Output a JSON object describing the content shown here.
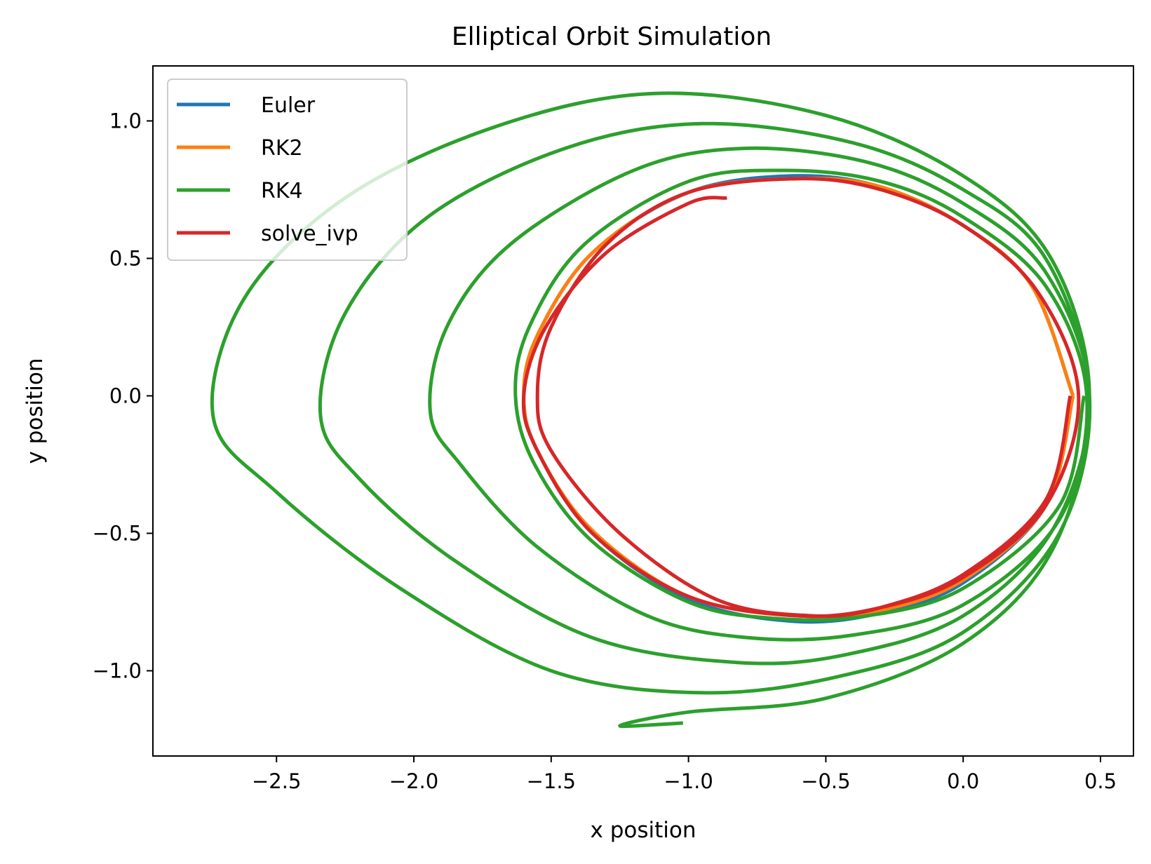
{
  "chart_data": {
    "type": "line",
    "title": "Elliptical Orbit Simulation",
    "xlabel": "x position",
    "ylabel": "y position",
    "xlim": [
      -2.95,
      0.62
    ],
    "ylim": [
      -1.31,
      1.2
    ],
    "grid": false,
    "legend_position": "top-left",
    "x_ticks": [
      -2.5,
      -2.0,
      -1.5,
      -1.0,
      -0.5,
      0.0,
      0.5
    ],
    "x_tick_labels": [
      "−2.5",
      "−2.0",
      "−1.5",
      "−1.0",
      "−0.5",
      "0.0",
      "0.5"
    ],
    "y_ticks": [
      -1.0,
      -0.5,
      0.0,
      0.5,
      1.0
    ],
    "y_tick_labels": [
      "−1.0",
      "−0.5",
      "0.0",
      "0.5",
      "1.0"
    ],
    "series": [
      {
        "name": "Euler",
        "color": "#1f77b4",
        "points": [
          [
            0.4,
            0.0
          ],
          [
            0.3,
            -0.4
          ],
          [
            0.0,
            -0.68
          ],
          [
            -0.3,
            -0.79
          ],
          [
            -0.62,
            -0.82
          ],
          [
            -1.0,
            -0.74
          ],
          [
            -1.35,
            -0.5
          ],
          [
            -1.55,
            -0.2
          ],
          [
            -1.6,
            0.0
          ],
          [
            -1.55,
            0.22
          ],
          [
            -1.35,
            0.52
          ],
          [
            -1.0,
            0.74
          ],
          [
            -0.62,
            0.8
          ],
          [
            -0.3,
            0.76
          ],
          [
            0.0,
            0.62
          ],
          [
            0.25,
            0.4
          ],
          [
            0.4,
            0.0
          ]
        ]
      },
      {
        "name": "RK2",
        "color": "#ff7f0e",
        "points": [
          [
            0.4,
            0.0
          ],
          [
            0.3,
            -0.4
          ],
          [
            0.0,
            -0.67
          ],
          [
            -0.3,
            -0.78
          ],
          [
            -0.6,
            -0.8
          ],
          [
            -1.0,
            -0.73
          ],
          [
            -1.35,
            -0.49
          ],
          [
            -1.55,
            -0.2
          ],
          [
            -1.6,
            0.0
          ],
          [
            -1.55,
            0.22
          ],
          [
            -1.35,
            0.52
          ],
          [
            -1.0,
            0.74
          ],
          [
            -0.6,
            0.79
          ],
          [
            -0.3,
            0.76
          ],
          [
            0.0,
            0.62
          ],
          [
            0.25,
            0.4
          ],
          [
            0.4,
            0.0
          ]
        ]
      },
      {
        "name": "RK4",
        "color": "#2ca02c",
        "points": [
          [
            0.44,
            0.0
          ],
          [
            0.35,
            -0.4
          ],
          [
            0.0,
            -0.7
          ],
          [
            -0.35,
            -0.8
          ],
          [
            -0.68,
            -0.81
          ],
          [
            -1.0,
            -0.75
          ],
          [
            -1.35,
            -0.53
          ],
          [
            -1.56,
            -0.25
          ],
          [
            -1.63,
            0.0
          ],
          [
            -1.58,
            0.25
          ],
          [
            -1.38,
            0.55
          ],
          [
            -1.0,
            0.78
          ],
          [
            -0.65,
            0.82
          ],
          [
            -0.3,
            0.78
          ],
          [
            0.0,
            0.65
          ],
          [
            0.3,
            0.4
          ],
          [
            0.45,
            0.0
          ],
          [
            0.35,
            -0.45
          ],
          [
            0.0,
            -0.76
          ],
          [
            -0.4,
            -0.87
          ],
          [
            -0.78,
            -0.88
          ],
          [
            -1.15,
            -0.8
          ],
          [
            -1.55,
            -0.55
          ],
          [
            -1.83,
            -0.25
          ],
          [
            -1.94,
            -0.06
          ],
          [
            -1.88,
            0.25
          ],
          [
            -1.65,
            0.55
          ],
          [
            -1.2,
            0.82
          ],
          [
            -0.8,
            0.9
          ],
          [
            -0.35,
            0.85
          ],
          [
            0.0,
            0.7
          ],
          [
            0.3,
            0.45
          ],
          [
            0.46,
            0.0
          ],
          [
            0.33,
            -0.48
          ],
          [
            0.0,
            -0.8
          ],
          [
            -0.42,
            -0.94
          ],
          [
            -0.82,
            -0.97
          ],
          [
            -1.35,
            -0.88
          ],
          [
            -1.85,
            -0.6
          ],
          [
            -2.2,
            -0.3
          ],
          [
            -2.34,
            -0.07
          ],
          [
            -2.25,
            0.3
          ],
          [
            -1.95,
            0.65
          ],
          [
            -1.45,
            0.9
          ],
          [
            -0.95,
            0.99
          ],
          [
            -0.4,
            0.92
          ],
          [
            0.0,
            0.75
          ],
          [
            0.3,
            0.5
          ],
          [
            0.46,
            0.0
          ],
          [
            0.35,
            -0.5
          ],
          [
            0.0,
            -0.86
          ],
          [
            -0.45,
            -1.02
          ],
          [
            -0.95,
            -1.08
          ],
          [
            -1.5,
            -1.0
          ],
          [
            -2.05,
            -0.7
          ],
          [
            -2.5,
            -0.35
          ],
          [
            -2.73,
            -0.08
          ],
          [
            -2.62,
            0.35
          ],
          [
            -2.25,
            0.72
          ],
          [
            -1.7,
            0.98
          ],
          [
            -1.12,
            1.1
          ],
          [
            -0.5,
            1.02
          ],
          [
            0.0,
            0.8
          ],
          [
            0.32,
            0.5
          ],
          [
            0.46,
            0.0
          ],
          [
            0.33,
            -0.55
          ],
          [
            0.0,
            -0.9
          ],
          [
            -0.5,
            -1.1
          ],
          [
            -1.0,
            -1.15
          ],
          [
            -1.25,
            -1.2
          ],
          [
            -1.02,
            -1.19
          ]
        ]
      },
      {
        "name": "solve_ivp",
        "color": "#d62728",
        "points": [
          [
            0.39,
            0.0
          ],
          [
            0.3,
            -0.38
          ],
          [
            0.0,
            -0.65
          ],
          [
            -0.3,
            -0.77
          ],
          [
            -0.55,
            -0.8
          ],
          [
            -0.9,
            -0.74
          ],
          [
            -1.25,
            -0.5
          ],
          [
            -1.5,
            -0.2
          ],
          [
            -1.55,
            0.0
          ],
          [
            -1.5,
            0.25
          ],
          [
            -1.3,
            0.55
          ],
          [
            -1.0,
            0.74
          ],
          [
            -0.6,
            0.79
          ],
          [
            -0.3,
            0.75
          ],
          [
            0.0,
            0.62
          ],
          [
            0.27,
            0.38
          ],
          [
            0.42,
            0.0
          ],
          [
            0.3,
            -0.4
          ],
          [
            0.0,
            -0.66
          ],
          [
            -0.3,
            -0.77
          ],
          [
            -0.6,
            -0.8
          ],
          [
            -1.0,
            -0.73
          ],
          [
            -1.35,
            -0.5
          ],
          [
            -1.55,
            -0.2
          ],
          [
            -1.6,
            0.0
          ],
          [
            -1.52,
            0.25
          ],
          [
            -1.3,
            0.52
          ],
          [
            -1.0,
            0.7
          ],
          [
            -0.86,
            0.72
          ]
        ]
      }
    ]
  }
}
